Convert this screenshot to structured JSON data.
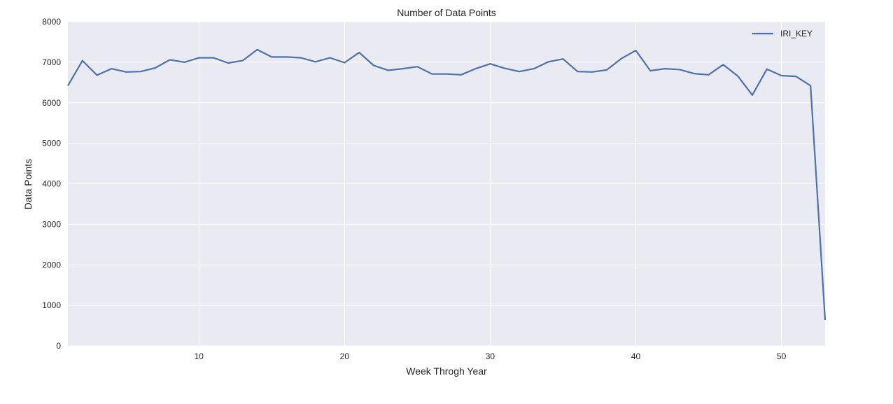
{
  "chart_data": {
    "type": "line",
    "title": "Number of Data Points",
    "xlabel": "Week Throgh Year",
    "ylabel": "Data Points",
    "xlim": [
      1,
      53
    ],
    "ylim": [
      0,
      8000
    ],
    "x_ticks": [
      10,
      20,
      30,
      40,
      50
    ],
    "y_ticks": [
      0,
      1000,
      2000,
      3000,
      4000,
      5000,
      6000,
      7000,
      8000
    ],
    "grid": true,
    "legend_position": "top-right",
    "colors": {
      "plot_background": "#eaeaf2",
      "grid": "#ffffff",
      "series": "#4c72b0"
    },
    "x": [
      1,
      2,
      3,
      4,
      5,
      6,
      7,
      8,
      9,
      10,
      11,
      12,
      13,
      14,
      15,
      16,
      17,
      18,
      19,
      20,
      21,
      22,
      23,
      24,
      25,
      26,
      27,
      28,
      29,
      30,
      31,
      32,
      33,
      34,
      35,
      36,
      37,
      38,
      39,
      40,
      41,
      42,
      43,
      44,
      45,
      46,
      47,
      48,
      49,
      50,
      51,
      52,
      53
    ],
    "series": [
      {
        "name": "IRI_KEY",
        "values": [
          6420,
          7040,
          6680,
          6840,
          6760,
          6770,
          6860,
          7060,
          7000,
          7110,
          7110,
          6980,
          7040,
          7310,
          7130,
          7130,
          7110,
          7010,
          7110,
          6990,
          7240,
          6920,
          6800,
          6840,
          6890,
          6710,
          6710,
          6690,
          6840,
          6960,
          6850,
          6770,
          6840,
          7010,
          7080,
          6770,
          6760,
          6810,
          7090,
          7290,
          6790,
          6840,
          6820,
          6720,
          6690,
          6940,
          6660,
          6190,
          6830,
          6670,
          6650,
          6420,
          640
        ]
      }
    ]
  }
}
